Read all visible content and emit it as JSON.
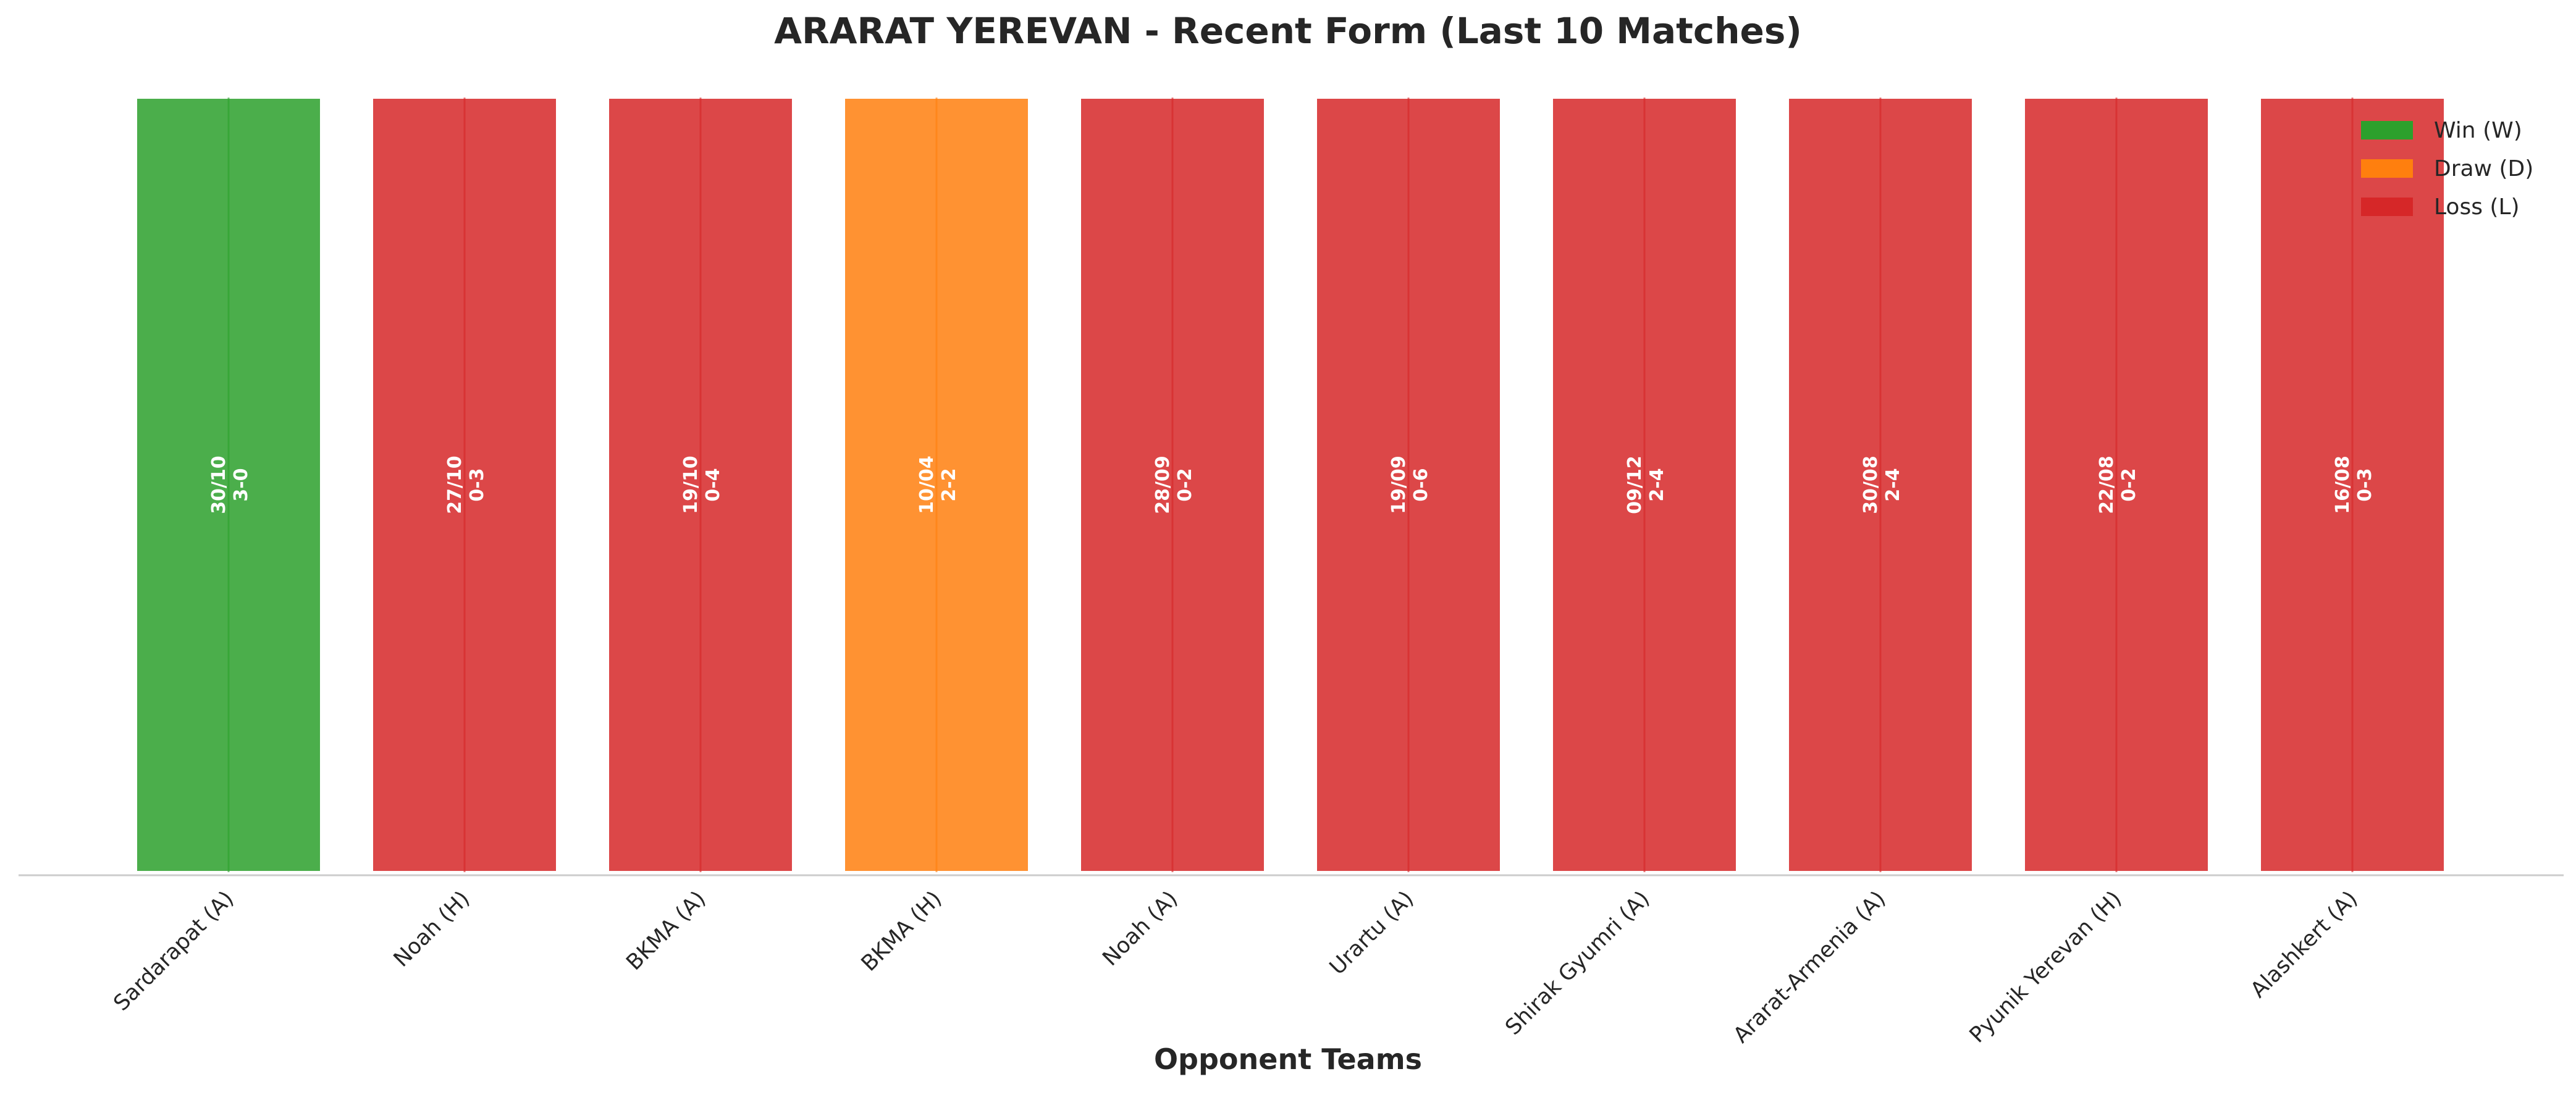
{
  "chart_data": {
    "type": "bar",
    "title": "ARARAT YEREVAN - Recent Form (Last 10 Matches)",
    "xlabel": "Opponent Teams",
    "ylabel": "",
    "categories": [
      "Sardarapat (A)",
      "Noah (H)",
      "BKMA (A)",
      "BKMA (H)",
      "Noah (A)",
      "Urartu (A)",
      "Shirak Gyumri (A)",
      "Ararat-Armenia (A)",
      "Pyunik Yerevan (H)",
      "Alashkert (A)"
    ],
    "values": [
      1,
      1,
      1,
      1,
      1,
      1,
      1,
      1,
      1,
      1
    ],
    "results": [
      "W",
      "L",
      "L",
      "D",
      "L",
      "L",
      "L",
      "L",
      "L",
      "L"
    ],
    "dates": [
      "30/10",
      "27/10",
      "19/10",
      "10/04",
      "28/09",
      "19/09",
      "09/12",
      "30/08",
      "22/08",
      "16/08"
    ],
    "scores": [
      "3-0",
      "0-3",
      "0-4",
      "2-2",
      "0-2",
      "0-6",
      "2-4",
      "2-4",
      "0-2",
      "0-3"
    ],
    "ylim": [
      0,
      1
    ],
    "grid": false,
    "legend": {
      "placement": "top-right",
      "entries": [
        {
          "key": "W",
          "label": "Win (W)",
          "color": "#2ca02c"
        },
        {
          "key": "D",
          "label": "Draw (D)",
          "color": "#ff7f0e"
        },
        {
          "key": "L",
          "label": "Loss (L)",
          "color": "#d62728"
        }
      ]
    }
  }
}
